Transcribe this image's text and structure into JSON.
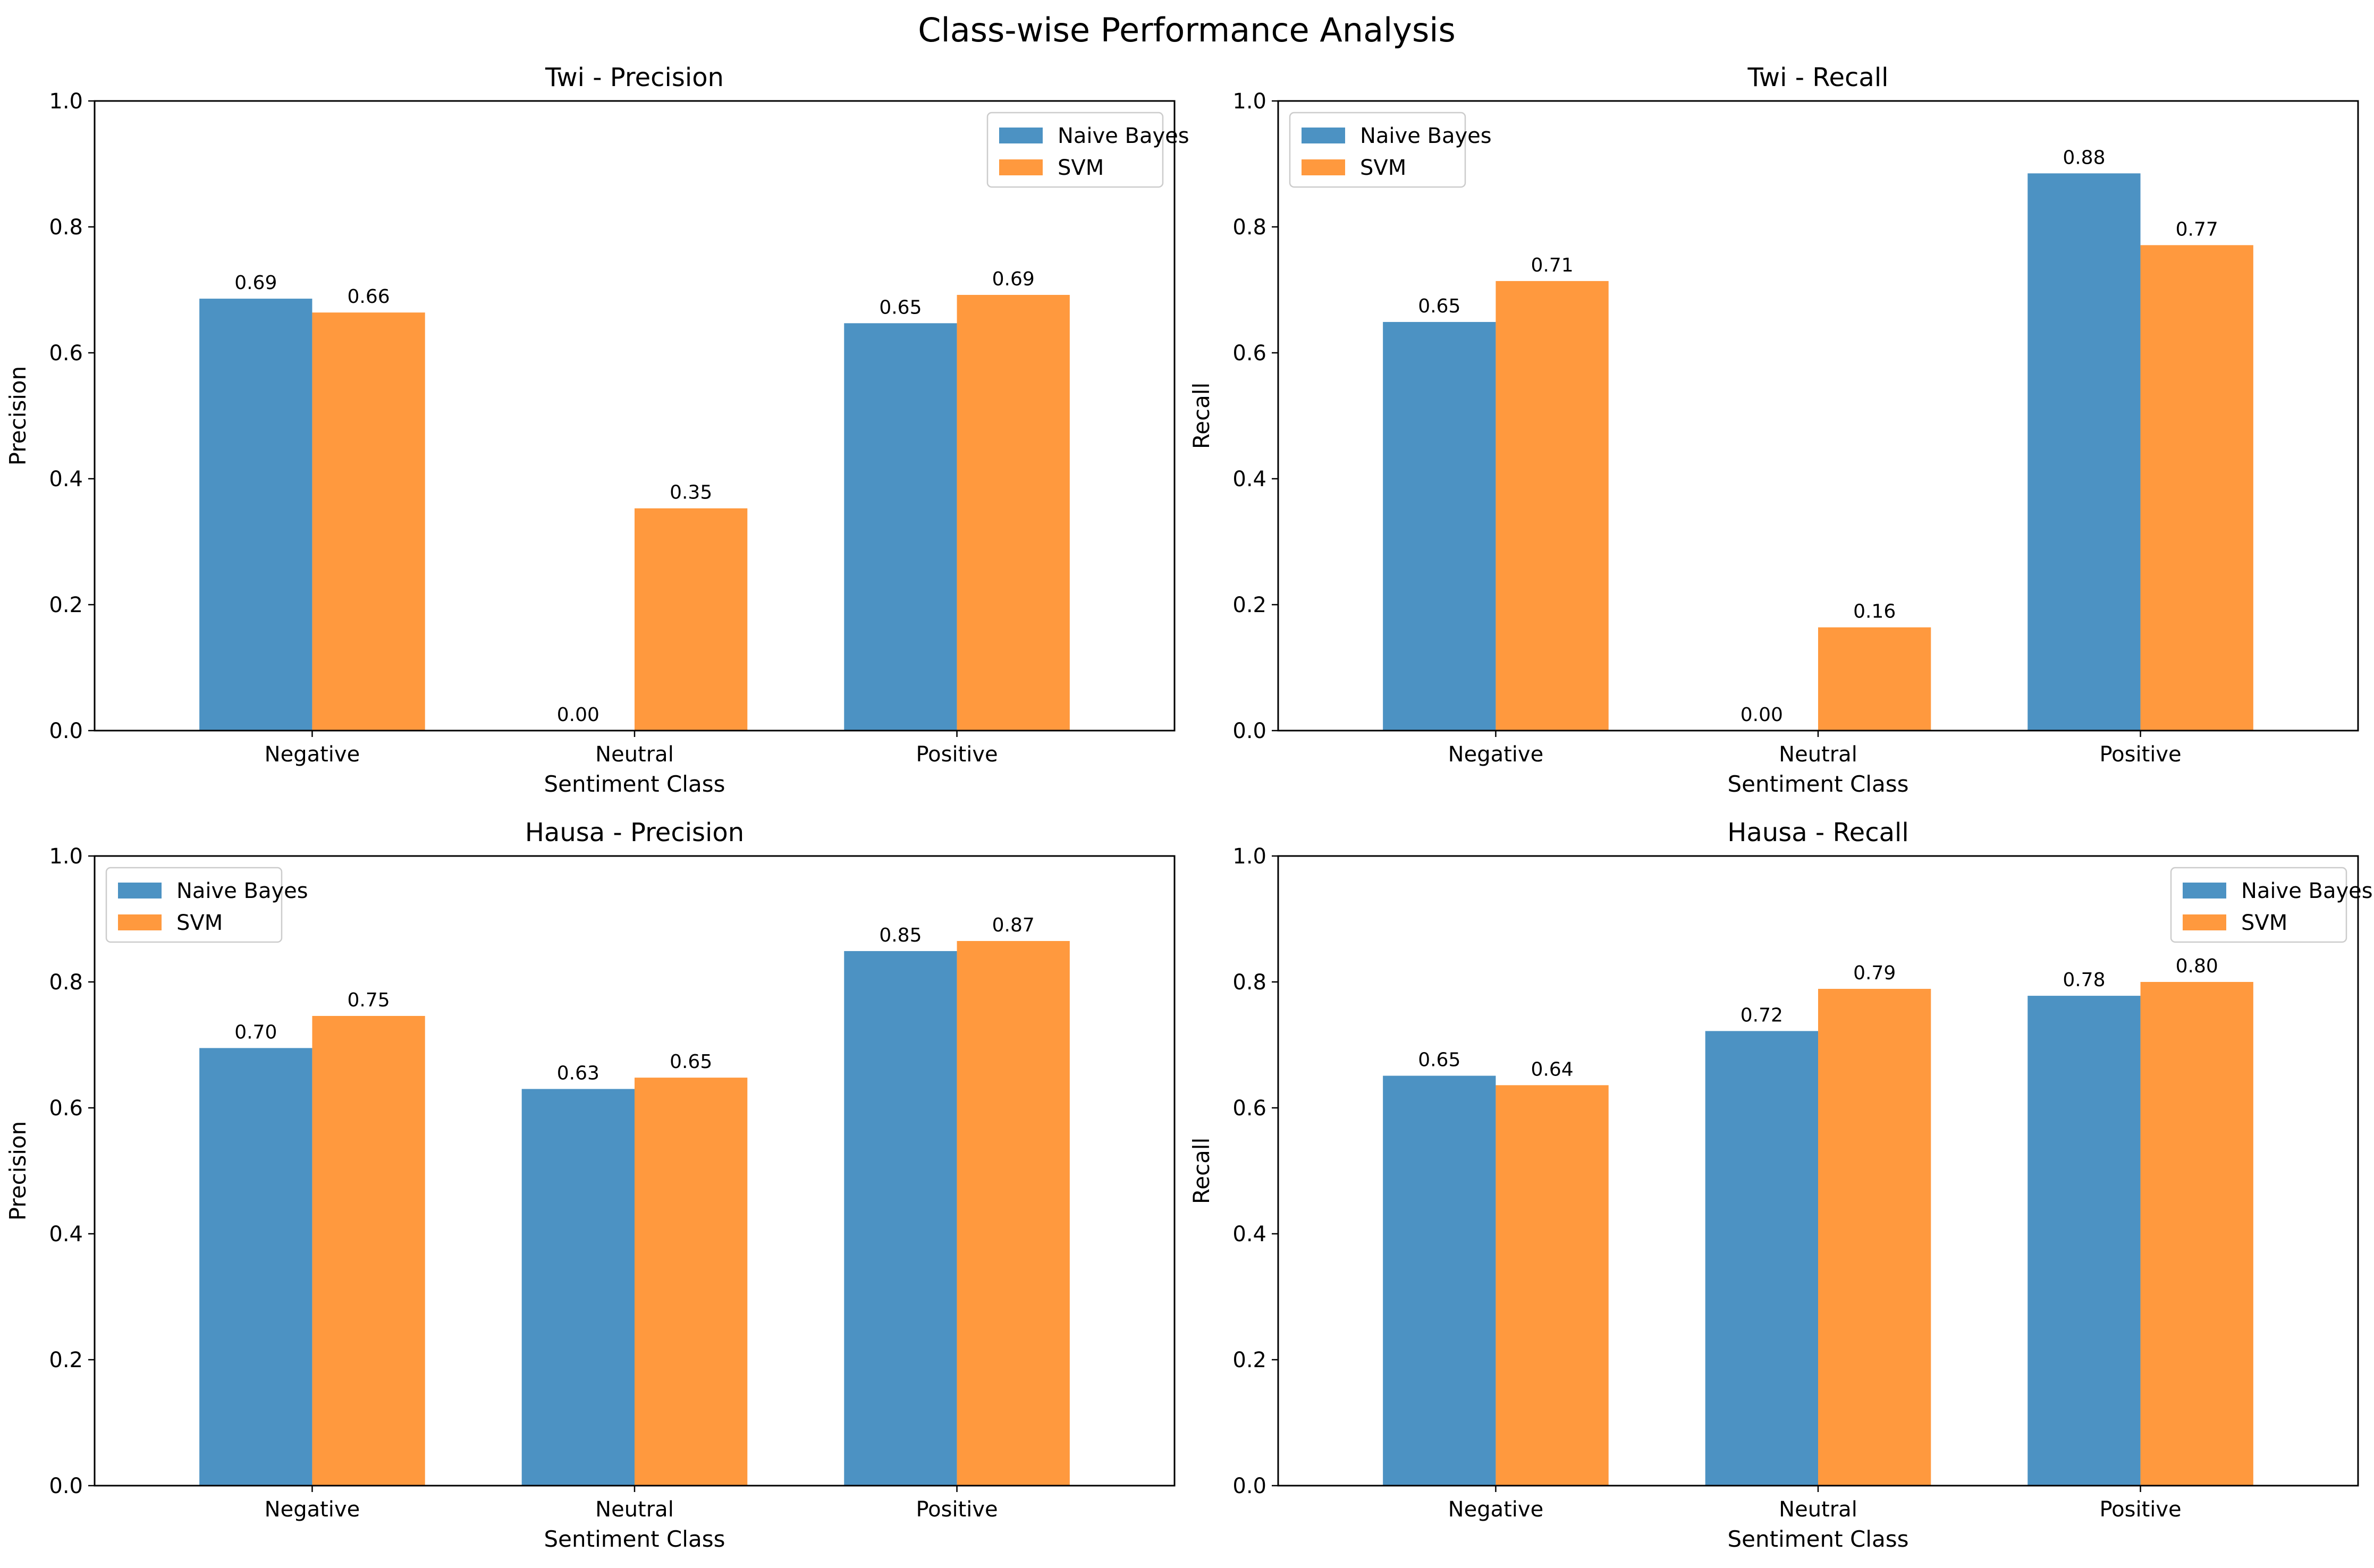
{
  "figure_title": "Class-wise Performance Analysis",
  "colors": {
    "naive_bayes": "#4c92c3",
    "svm": "#ff993e"
  },
  "chart_data": [
    {
      "type": "bar",
      "title": "Twi - Precision",
      "xlabel": "Sentiment Class",
      "ylabel": "Precision",
      "categories": [
        "Negative",
        "Neutral",
        "Positive"
      ],
      "ylim": [
        0,
        1.0
      ],
      "yticks": [
        "0.0",
        "0.2",
        "0.4",
        "0.6",
        "0.8",
        "1.0"
      ],
      "legend": "top-right",
      "series": [
        {
          "name": "Naive Bayes",
          "values": [
            0.686,
            0.0,
            0.647
          ],
          "labels": [
            "0.69",
            "0.00",
            "0.65"
          ]
        },
        {
          "name": "SVM",
          "values": [
            0.664,
            0.353,
            0.692
          ],
          "labels": [
            "0.66",
            "0.35",
            "0.69"
          ]
        }
      ]
    },
    {
      "type": "bar",
      "title": "Twi - Recall",
      "xlabel": "Sentiment Class",
      "ylabel": "Recall",
      "categories": [
        "Negative",
        "Neutral",
        "Positive"
      ],
      "ylim": [
        0,
        1.0
      ],
      "yticks": [
        "0.0",
        "0.2",
        "0.4",
        "0.6",
        "0.8",
        "1.0"
      ],
      "legend": "top-left",
      "series": [
        {
          "name": "Naive Bayes",
          "values": [
            0.649,
            0.0,
            0.885
          ],
          "labels": [
            "0.65",
            "0.00",
            "0.88"
          ]
        },
        {
          "name": "SVM",
          "values": [
            0.714,
            0.164,
            0.771
          ],
          "labels": [
            "0.71",
            "0.16",
            "0.77"
          ]
        }
      ]
    },
    {
      "type": "bar",
      "title": "Hausa - Precision",
      "xlabel": "Sentiment Class",
      "ylabel": "Precision",
      "categories": [
        "Negative",
        "Neutral",
        "Positive"
      ],
      "ylim": [
        0,
        1.0
      ],
      "yticks": [
        "0.0",
        "0.2",
        "0.4",
        "0.6",
        "0.8",
        "1.0"
      ],
      "legend": "top-left",
      "series": [
        {
          "name": "Naive Bayes",
          "values": [
            0.695,
            0.63,
            0.849
          ],
          "labels": [
            "0.70",
            "0.63",
            "0.85"
          ]
        },
        {
          "name": "SVM",
          "values": [
            0.746,
            0.648,
            0.865
          ],
          "labels": [
            "0.75",
            "0.65",
            "0.87"
          ]
        }
      ]
    },
    {
      "type": "bar",
      "title": "Hausa - Recall",
      "xlabel": "Sentiment Class",
      "ylabel": "Recall",
      "categories": [
        "Negative",
        "Neutral",
        "Positive"
      ],
      "ylim": [
        0,
        1.0
      ],
      "yticks": [
        "0.0",
        "0.2",
        "0.4",
        "0.6",
        "0.8",
        "1.0"
      ],
      "legend": "top-right",
      "series": [
        {
          "name": "Naive Bayes",
          "values": [
            0.651,
            0.722,
            0.778
          ],
          "labels": [
            "0.65",
            "0.72",
            "0.78"
          ]
        },
        {
          "name": "SVM",
          "values": [
            0.636,
            0.789,
            0.8
          ],
          "labels": [
            "0.64",
            "0.79",
            "0.80"
          ]
        }
      ]
    }
  ]
}
